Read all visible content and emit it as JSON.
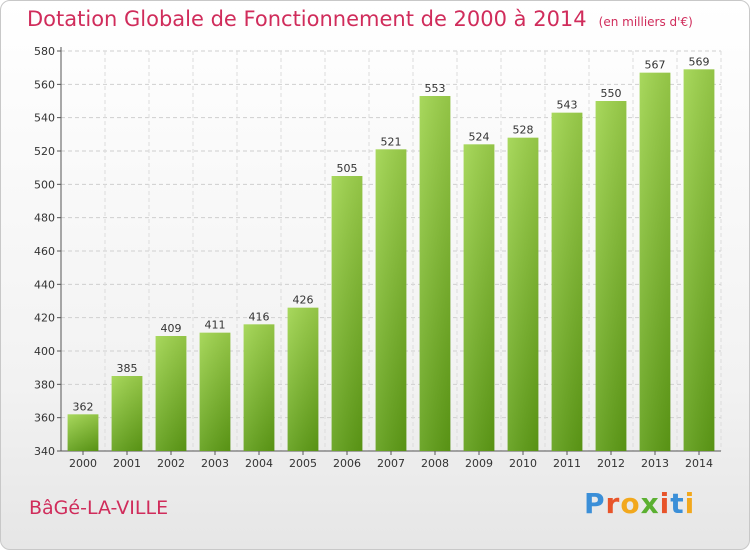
{
  "header": {
    "title": "Dotation Globale de Fonctionnement de 2000 à 2014",
    "unit": "(en milliers d'€)"
  },
  "footer": {
    "commune": "BâGé-LA-VILLE",
    "logo": {
      "letters": [
        "P",
        "r",
        "o",
        "x",
        "i",
        "t",
        "i"
      ],
      "colors": [
        "#3b8fd8",
        "#e8542a",
        "#f2a81d",
        "#5bb031",
        "#e8542a",
        "#3b8fd8",
        "#f2a81d"
      ]
    }
  },
  "chart_data": {
    "type": "bar",
    "categories": [
      "2000",
      "2001",
      "2002",
      "2003",
      "2004",
      "2005",
      "2006",
      "2007",
      "2008",
      "2009",
      "2010",
      "2011",
      "2012",
      "2013",
      "2014"
    ],
    "values": [
      362,
      385,
      409,
      411,
      416,
      426,
      505,
      521,
      553,
      524,
      528,
      543,
      550,
      567,
      569
    ],
    "ylim": [
      340,
      580
    ],
    "yticks": [
      340,
      360,
      380,
      400,
      420,
      440,
      460,
      480,
      500,
      520,
      540,
      560,
      580
    ],
    "grid": true,
    "bar_color": "#7cbd2c"
  }
}
